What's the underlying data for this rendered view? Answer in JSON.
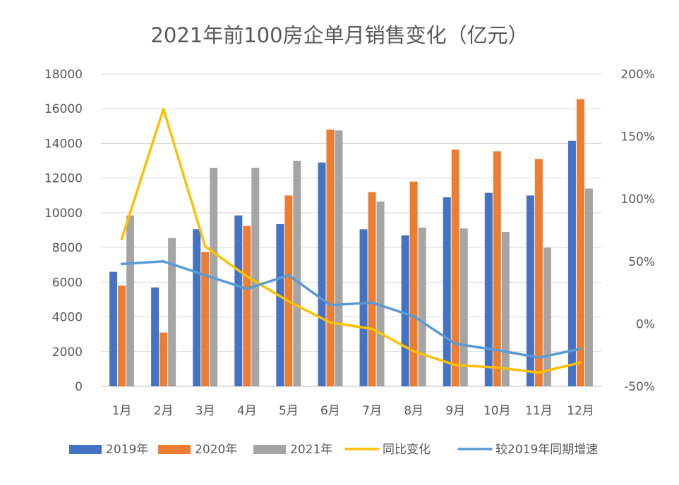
{
  "chart_data": {
    "type": "bar",
    "title": "2021年前100房企单月销售变化（亿元）",
    "categories": [
      "1月",
      "2月",
      "3月",
      "4月",
      "5月",
      "6月",
      "7月",
      "8月",
      "9月",
      "10月",
      "11月",
      "12月"
    ],
    "series": [
      {
        "name": "2019年",
        "type": "bar",
        "axis": "left",
        "color": "#4472C4",
        "values": [
          6600,
          5700,
          9050,
          9850,
          9350,
          12900,
          9050,
          8700,
          10900,
          11150,
          11000,
          14150
        ]
      },
      {
        "name": "2020年",
        "type": "bar",
        "axis": "left",
        "color": "#ED7D31",
        "values": [
          5800,
          3100,
          7750,
          9250,
          11000,
          14800,
          11200,
          11800,
          13650,
          13550,
          13100,
          16550
        ]
      },
      {
        "name": "2021年",
        "type": "bar",
        "axis": "left",
        "color": "#A5A5A5",
        "values": [
          9850,
          8550,
          12600,
          12600,
          13000,
          14750,
          10650,
          9150,
          9100,
          8900,
          8000,
          11400
        ]
      },
      {
        "name": "同比变化",
        "type": "line",
        "axis": "right",
        "color": "#FFC000",
        "values": [
          68,
          172,
          62,
          38,
          18,
          1,
          -4,
          -22,
          -33,
          -35,
          -39,
          -31
        ]
      },
      {
        "name": "较2019年同期增速",
        "type": "line",
        "axis": "right",
        "color": "#5B9BD5",
        "values": [
          48,
          50,
          39,
          28,
          39,
          15,
          17,
          6,
          -16,
          -21,
          -27,
          -20
        ]
      }
    ],
    "ylim_left": [
      0,
      18000
    ],
    "yticks_left": [
      "0",
      "2000",
      "4000",
      "6000",
      "8000",
      "10000",
      "12000",
      "14000",
      "16000",
      "18000"
    ],
    "ylim_right": [
      -50,
      200
    ],
    "yticks_right": [
      "-50%",
      "0%",
      "50%",
      "100%",
      "150%",
      "200%"
    ],
    "grid": true,
    "legend_position": "bottom"
  }
}
